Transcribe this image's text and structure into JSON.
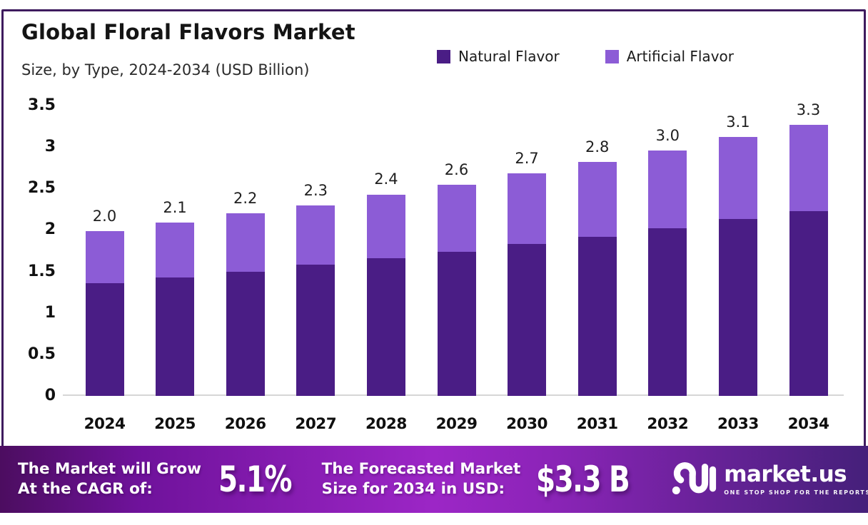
{
  "header": {
    "title": "Global Floral Flavors Market",
    "subtitle": "Size, by Type, 2024-2034 (USD Billion)"
  },
  "legend": [
    {
      "label": "Natural Flavor",
      "color": "#4a1d85"
    },
    {
      "label": "Artificial Flavor",
      "color": "#8c5cd6"
    }
  ],
  "colors": {
    "frame_border": "#3e1b5e",
    "natural_bar": "#4a1d85",
    "artificial_bar": "#8c5cd6",
    "footer_gradient_left": "#4c0d60",
    "footer_gradient_mid": "#9c26c6",
    "footer_gradient_right": "#45207a"
  },
  "chart_data": {
    "type": "bar",
    "stacked": true,
    "title": "Global Floral Flavors Market Size, by Type, 2024-2034 (USD Billion)",
    "xlabel": "",
    "ylabel": "USD Billion",
    "categories": [
      "2024",
      "2025",
      "2026",
      "2027",
      "2028",
      "2029",
      "2030",
      "2031",
      "2032",
      "2033",
      "2034"
    ],
    "series": [
      {
        "name": "Natural Flavor",
        "color": "#4a1d85",
        "values": [
          1.36,
          1.43,
          1.5,
          1.58,
          1.66,
          1.74,
          1.83,
          1.92,
          2.02,
          2.13,
          2.23
        ]
      },
      {
        "name": "Artificial Flavor",
        "color": "#8c5cd6",
        "values": [
          0.63,
          0.66,
          0.7,
          0.72,
          0.77,
          0.81,
          0.85,
          0.9,
          0.94,
          0.99,
          1.04
        ]
      }
    ],
    "data_labels": [
      "2.0",
      "2.1",
      "2.2",
      "2.3",
      "2.4",
      "2.6",
      "2.7",
      "2.8",
      "3.0",
      "3.1",
      "3.3"
    ],
    "y_ticks": [
      "3.5",
      "3",
      "2.5",
      "2",
      "1.5",
      "1",
      "0.5",
      "0"
    ],
    "ylim": [
      0,
      3.5
    ],
    "grid": false,
    "legend_position": "top-right"
  },
  "footer": {
    "cagr_label_line1": "The Market will Grow",
    "cagr_label_line2": "At the CAGR of:",
    "cagr_value": "5.1%",
    "forecast_label_line1": "The Forecasted Market",
    "forecast_label_line2": "Size for 2034 in USD:",
    "forecast_value": "$3.3 B",
    "logo_name": "market.us",
    "logo_tagline": "ONE STOP SHOP FOR THE REPORTS"
  }
}
